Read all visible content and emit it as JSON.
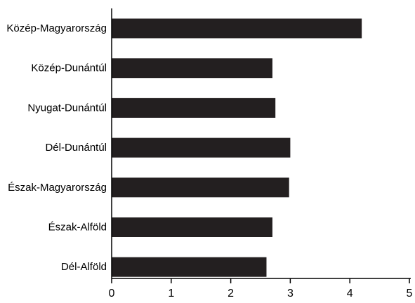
{
  "chart_data": {
    "type": "bar",
    "orientation": "horizontal",
    "categories": [
      "Közép-Magyarország",
      "Közép-Dunántúl",
      "Nyugat-Dunántúl",
      "Dél-Dunántúl",
      "Észak-Magyarország",
      "Észak-Alföld",
      "Dél-Alföld"
    ],
    "values": [
      4.2,
      2.7,
      2.75,
      3.0,
      2.98,
      2.7,
      2.6
    ],
    "xlim": [
      0,
      5
    ],
    "xticks": [
      0,
      1,
      2,
      3,
      4,
      5
    ],
    "grid": false,
    "bar_color": "#231f20"
  }
}
